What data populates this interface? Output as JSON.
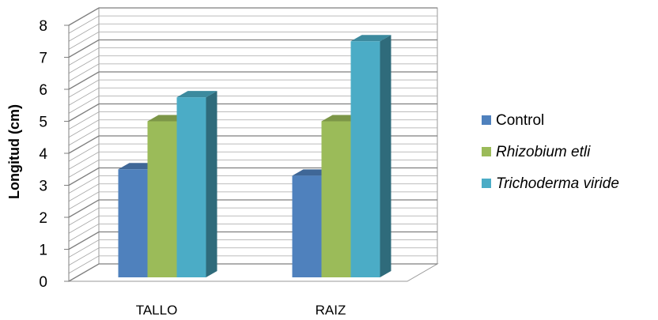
{
  "chart_data": {
    "type": "bar",
    "categories": [
      "TALLO",
      "RAIZ"
    ],
    "series": [
      {
        "name": "Control",
        "values": [
          3.5,
          3.3
        ],
        "color": "#4F81BD",
        "italic": false
      },
      {
        "name": "Rhizobium etli",
        "values": [
          5.0,
          5.0
        ],
        "color": "#9BBB59",
        "italic": true
      },
      {
        "name": "Trichoderma viride",
        "values": [
          5.75,
          7.5
        ],
        "color": "#4BACC6",
        "italic": true
      }
    ],
    "xlabel": "",
    "ylabel": "Longitud (cm)",
    "ylim": [
      0,
      8
    ],
    "yticks": [
      "0",
      "1",
      "2",
      "3",
      "4",
      "5",
      "6",
      "7",
      "8"
    ],
    "style": "3d-clustered-column",
    "grid": true,
    "legend_position": "right"
  }
}
